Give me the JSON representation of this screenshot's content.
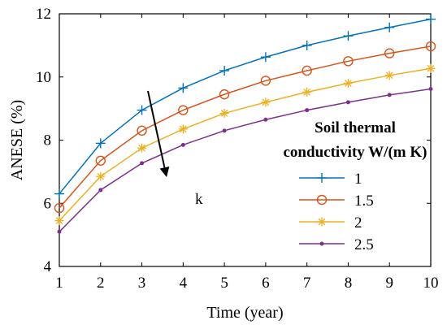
{
  "chart_data": {
    "type": "line",
    "xlabel": "Time (year)",
    "ylabel": "ANESE (%)",
    "xlim": [
      1,
      10
    ],
    "ylim": [
      4,
      12
    ],
    "xticks": [
      1,
      2,
      3,
      4,
      5,
      6,
      7,
      8,
      9,
      10
    ],
    "yticks": [
      4,
      6,
      8,
      10,
      12
    ],
    "grid": false,
    "legend": {
      "title_line1": "Soil thermal",
      "title_line2": "conductivity W/(m K)",
      "placement": "lower-right"
    },
    "annotation": {
      "text": "k",
      "description": "arrow indicating direction of increasing k"
    },
    "x": [
      1,
      2,
      3,
      4,
      5,
      6,
      7,
      8,
      9,
      10
    ],
    "series": [
      {
        "name": "1",
        "color": "#0072BD",
        "marker": "plus",
        "values": [
          6.3,
          7.9,
          8.95,
          9.65,
          10.2,
          10.63,
          11.0,
          11.3,
          11.57,
          11.83
        ]
      },
      {
        "name": "1.5",
        "color": "#D95319",
        "marker": "circle",
        "values": [
          5.85,
          7.35,
          8.3,
          8.95,
          9.45,
          9.88,
          10.2,
          10.5,
          10.75,
          10.97
        ]
      },
      {
        "name": "2",
        "color": "#EDB120",
        "marker": "asterisk",
        "values": [
          5.45,
          6.85,
          7.75,
          8.35,
          8.85,
          9.2,
          9.52,
          9.8,
          10.05,
          10.27
        ]
      },
      {
        "name": "2.5",
        "color": "#7E2F8E",
        "marker": "dot",
        "values": [
          5.1,
          6.42,
          7.27,
          7.85,
          8.3,
          8.65,
          8.95,
          9.2,
          9.43,
          9.62
        ]
      }
    ]
  }
}
